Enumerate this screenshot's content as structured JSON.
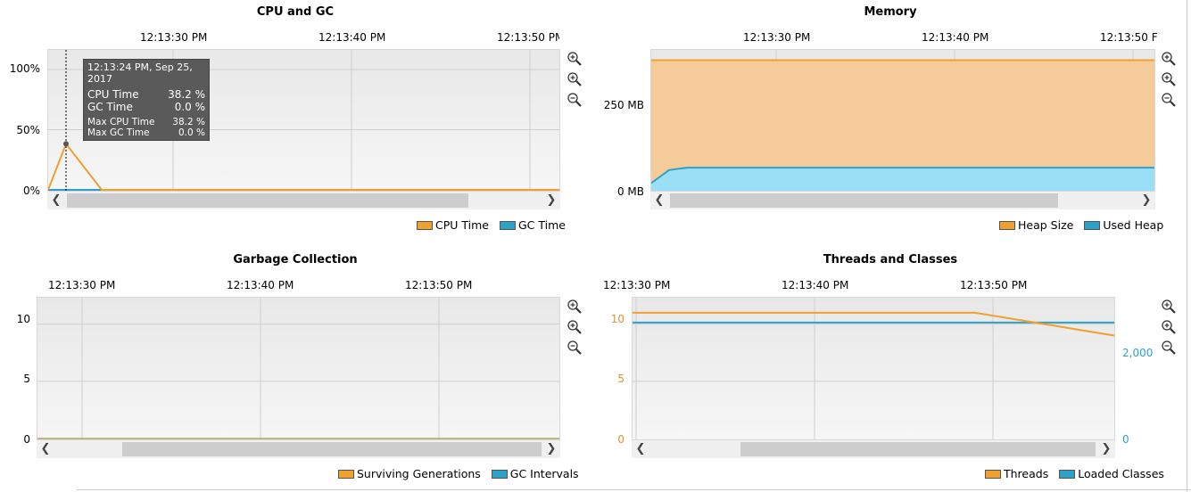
{
  "colors": {
    "orange": "#f0a030",
    "orange_fill": "#f5cc99",
    "blue": "#2da1c8",
    "blue_fill": "#9adff5",
    "axis_right": "#2da1c8",
    "axis_left_orange": "#e09030"
  },
  "zoom_icons": [
    "zoom-in-icon",
    "zoom-in-icon",
    "zoom-out-icon"
  ],
  "cpu": {
    "title": "CPU and GC",
    "xticks": [
      "12:13:30 PM",
      "12:13:40 PM",
      "12:13:50 PM"
    ],
    "yticks": [
      "100%",
      "50%",
      "0%"
    ],
    "legend": [
      "CPU Time",
      "GC Time"
    ],
    "tooltip": {
      "header": "12:13:24 PM, Sep 25, 2017",
      "rows": [
        {
          "label": "CPU Time",
          "value": "38.2 %"
        },
        {
          "label": "GC Time",
          "value": "0.0 %"
        }
      ],
      "small_rows": [
        {
          "label": "Max CPU Time",
          "value": "38.2 %"
        },
        {
          "label": "Max GC Time",
          "value": "0.0 %"
        }
      ]
    },
    "chart_data": {
      "type": "line",
      "x": [
        "12:13:23 PM",
        "12:13:24 PM",
        "12:13:26 PM",
        "12:13:56 PM"
      ],
      "series": [
        {
          "name": "CPU Time",
          "values": [
            0,
            38.2,
            0,
            0
          ]
        },
        {
          "name": "GC Time",
          "values": [
            0,
            0,
            0,
            0
          ]
        }
      ],
      "ylim": [
        0,
        100
      ]
    }
  },
  "memory": {
    "title": "Memory",
    "xticks": [
      "12:13:30 PM",
      "12:13:40 PM",
      "12:13:50 F"
    ],
    "yticks": [
      "250 MB",
      "0 MB"
    ],
    "legend": [
      "Heap Size",
      "Used Heap"
    ],
    "chart_data": {
      "type": "area",
      "x": [
        "12:13:23 PM",
        "12:13:24 PM",
        "12:13:25 PM",
        "12:13:51 PM"
      ],
      "series": [
        {
          "name": "Heap Size",
          "values": [
            380,
            380,
            380,
            380
          ]
        },
        {
          "name": "Used Heap",
          "values": [
            20,
            58,
            65,
            65
          ]
        }
      ],
      "ylim": [
        0,
        410
      ]
    }
  },
  "gc": {
    "title": "Garbage Collection",
    "xticks": [
      "12:13:30 PM",
      "12:13:40 PM",
      "12:13:50 PM"
    ],
    "yticks": [
      "10",
      "5",
      "0"
    ],
    "legend": [
      "Surviving Generations",
      "GC Intervals"
    ],
    "chart_data": {
      "type": "line",
      "x": [
        "12:13:23 PM",
        "12:13:59 PM"
      ],
      "series": [
        {
          "name": "Surviving Generations",
          "values": [
            0,
            0
          ]
        },
        {
          "name": "GC Intervals",
          "values": [
            0,
            0
          ]
        }
      ],
      "ylim": [
        0,
        12
      ]
    }
  },
  "threads": {
    "title": "Threads and Classes",
    "xticks": [
      "12:13:30 PM",
      "12:13:40 PM",
      "12:13:50 PM"
    ],
    "yticks_left": [
      "10",
      "5",
      "0"
    ],
    "yticks_right": [
      "2,000",
      "0"
    ],
    "legend": [
      "Threads",
      "Loaded Classes"
    ],
    "chart_data": {
      "type": "line",
      "x": [
        "12:13:23 PM",
        "12:13:49 PM",
        "12:13:50 PM"
      ],
      "series": [
        {
          "name": "Threads",
          "values": [
            11,
            11,
            9
          ]
        },
        {
          "name": "Loaded Classes",
          "values": [
            2780,
            2780,
            2780
          ]
        }
      ],
      "ylim_left": [
        0,
        12
      ],
      "ylim_right": [
        0,
        3290
      ]
    }
  }
}
